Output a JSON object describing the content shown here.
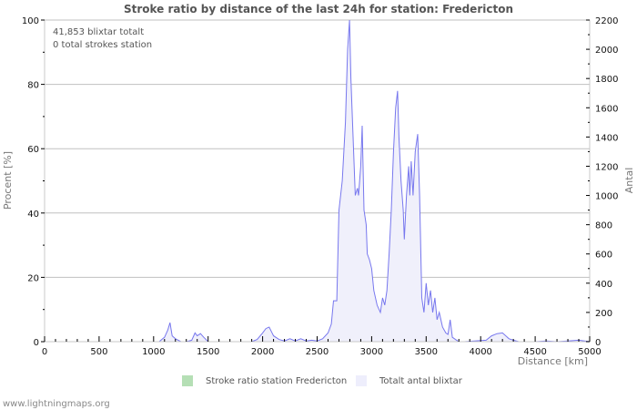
{
  "header": {
    "title": "Stroke ratio by distance of the last 24h for station: Fredericton"
  },
  "info": {
    "line1": "41,853 blixtar totalt",
    "line2": "0 total strokes station"
  },
  "legend": {
    "items": [
      {
        "label": "Stroke ratio station Fredericton",
        "color": "#b5dfb5"
      },
      {
        "label": "Totalt antal blixtar",
        "color": "#eeeefc"
      }
    ]
  },
  "footer": {
    "text": "www.lightningmaps.org"
  },
  "colors": {
    "line": "#7777ee",
    "fill": "#f0f0fb",
    "grid": "#c0c0c0",
    "axis": "#c8c8c8"
  },
  "chart_data": {
    "type": "area",
    "title": "Stroke ratio by distance of the last 24h for station: Fredericton",
    "xlabel": "Distance   [km]",
    "ylabel": "Procent   [%]",
    "y2label": "Antal",
    "xlim": [
      0,
      5000
    ],
    "ylim": [
      0,
      100
    ],
    "y2lim": [
      0,
      2200
    ],
    "xticks": [
      0,
      500,
      1000,
      1500,
      2000,
      2500,
      3000,
      3500,
      4000,
      4500,
      5000
    ],
    "yticks": [
      0,
      20,
      40,
      60,
      80,
      100
    ],
    "y2ticks": [
      0,
      200,
      400,
      600,
      800,
      1000,
      1200,
      1400,
      1600,
      1800,
      2000,
      2200
    ],
    "grid": true,
    "legend_position": "bottom",
    "series": [
      {
        "name": "Stroke ratio station Fredericton",
        "axis": "left",
        "x": [
          0,
          5000
        ],
        "values": [
          0,
          0
        ]
      },
      {
        "name": "Totalt antal blixtar",
        "axis": "right",
        "x": [
          0,
          1050,
          1100,
          1130,
          1150,
          1170,
          1200,
          1250,
          1300,
          1350,
          1380,
          1400,
          1430,
          1460,
          1500,
          1550,
          1900,
          1950,
          2000,
          2030,
          2060,
          2080,
          2100,
          2150,
          2200,
          2250,
          2300,
          2350,
          2400,
          2450,
          2500,
          2550,
          2600,
          2630,
          2650,
          2680,
          2700,
          2730,
          2760,
          2780,
          2797,
          2810,
          2830,
          2850,
          2870,
          2880,
          2900,
          2913,
          2930,
          2950,
          2960,
          2980,
          3000,
          3020,
          3050,
          3080,
          3100,
          3120,
          3140,
          3160,
          3180,
          3200,
          3220,
          3238,
          3250,
          3270,
          3290,
          3300,
          3320,
          3340,
          3350,
          3363,
          3380,
          3400,
          3422,
          3440,
          3460,
          3480,
          3500,
          3520,
          3540,
          3560,
          3580,
          3600,
          3620,
          3650,
          3680,
          3700,
          3720,
          3740,
          3780,
          3800,
          3850,
          4050,
          4100,
          4150,
          4200,
          4230,
          4260,
          4300,
          4350,
          4500,
          4600,
          4700,
          4800,
          4900,
          5000
        ],
        "values": [
          0,
          0,
          30,
          80,
          130,
          40,
          20,
          0,
          0,
          10,
          60,
          40,
          55,
          30,
          0,
          0,
          0,
          15,
          60,
          90,
          100,
          70,
          40,
          15,
          5,
          20,
          5,
          20,
          5,
          10,
          5,
          20,
          60,
          120,
          280,
          280,
          900,
          1100,
          1500,
          2000,
          2200,
          1800,
          1400,
          1000,
          1050,
          1000,
          1200,
          1477,
          900,
          800,
          600,
          560,
          500,
          350,
          250,
          200,
          300,
          250,
          350,
          600,
          900,
          1300,
          1600,
          1715,
          1400,
          1100,
          900,
          700,
          1000,
          1200,
          1000,
          1234,
          1000,
          1300,
          1420,
          1000,
          300,
          200,
          400,
          250,
          350,
          200,
          300,
          150,
          200,
          100,
          60,
          50,
          150,
          30,
          10,
          0,
          0,
          10,
          40,
          55,
          60,
          40,
          20,
          10,
          0,
          0,
          5,
          0,
          5,
          10,
          0
        ]
      }
    ]
  }
}
